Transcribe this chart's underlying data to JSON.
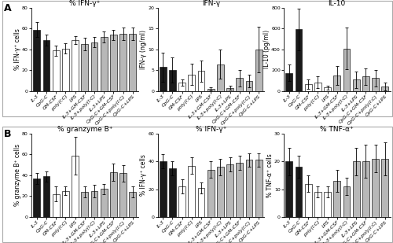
{
  "panel_A": {
    "plot1": {
      "title": "% IFN-γ⁺",
      "ylabel": "% IFN-γ⁺ cells",
      "ylim": [
        0,
        80
      ],
      "yticks": [
        0,
        20,
        40,
        60,
        80
      ],
      "categories": [
        "IL-3",
        "CpG-C",
        "GM-CSF",
        "poly(I:C)",
        "LPS",
        "IL-3+GM-CSF",
        "IL-3+poly(I:C)",
        "IL-3+LPS",
        "CpG-C+GM-CSF",
        "CpG-C+poly(I:C)",
        "CpG-C+LPS"
      ],
      "black_vals": [
        59,
        49,
        null,
        null,
        null,
        null,
        null,
        null,
        null,
        null,
        null
      ],
      "white_vals": [
        null,
        null,
        39,
        41,
        49,
        null,
        null,
        null,
        null,
        null,
        null
      ],
      "gray_vals": [
        null,
        null,
        null,
        null,
        null,
        45,
        47,
        52,
        54,
        55,
        55
      ],
      "black_err": [
        7,
        5,
        null,
        null,
        null,
        null,
        null,
        null,
        null,
        null,
        null
      ],
      "white_err": [
        null,
        null,
        5,
        5,
        4,
        null,
        null,
        null,
        null,
        null,
        null
      ],
      "gray_err": [
        null,
        null,
        null,
        null,
        null,
        6,
        5,
        5,
        5,
        6,
        6
      ]
    },
    "plot2": {
      "title": "IFN-γ",
      "ylabel": "IFN-γ (ng/ml)",
      "ylim": [
        0,
        20
      ],
      "yticks": [
        0,
        5,
        10,
        15,
        20
      ],
      "categories": [
        "IL-3",
        "CpG-C",
        "GM-CSF",
        "poly(I:C)",
        "LPS",
        "IL-3+GM-CSF",
        "IL-3+poly(I:C)",
        "IL-3+LPS",
        "CpG-C+GM-CSF",
        "CpG-C+poly(I:C)",
        "CpG-C+LPS"
      ],
      "black_vals": [
        5.8,
        5.1,
        null,
        null,
        null,
        null,
        null,
        null,
        null,
        null,
        null
      ],
      "white_vals": [
        null,
        null,
        2.0,
        4.0,
        4.8,
        null,
        null,
        null,
        null,
        null,
        null
      ],
      "gray_vals": [
        null,
        null,
        null,
        null,
        null,
        0.6,
        6.4,
        0.8,
        3.1,
        2.4,
        10.0
      ],
      "black_err": [
        3.5,
        3.0,
        null,
        null,
        null,
        null,
        null,
        null,
        null,
        null,
        null
      ],
      "white_err": [
        null,
        null,
        0.8,
        2.5,
        2.5,
        null,
        null,
        null,
        null,
        null,
        null
      ],
      "gray_err": [
        null,
        null,
        null,
        null,
        null,
        0.4,
        3.5,
        0.5,
        2.0,
        1.5,
        5.5
      ]
    },
    "plot3": {
      "title": "IL-10",
      "ylabel": "IL-10 (pg/ml)",
      "ylim": [
        0,
        800
      ],
      "yticks": [
        0,
        200,
        400,
        600,
        800
      ],
      "categories": [
        "IL-3",
        "CpG-C",
        "GM-CSF",
        "poly(I:C)",
        "LPS",
        "IL-3+GM-CSF",
        "IL-3+poly(I:C)",
        "IL-3+LPS",
        "CpG-C+GM-CSF",
        "CpG-C+poly(I:C)",
        "CpG-C+LPS"
      ],
      "black_vals": [
        175,
        595,
        null,
        null,
        null,
        null,
        null,
        null,
        null,
        null,
        null
      ],
      "white_vals": [
        null,
        null,
        65,
        85,
        35,
        null,
        null,
        null,
        null,
        null,
        null
      ],
      "gray_vals": [
        null,
        null,
        null,
        null,
        null,
        150,
        410,
        110,
        140,
        125,
        45
      ],
      "black_err": [
        80,
        200,
        null,
        null,
        null,
        null,
        null,
        null,
        null,
        null,
        null
      ],
      "white_err": [
        null,
        null,
        45,
        55,
        20,
        null,
        null,
        null,
        null,
        null,
        null
      ],
      "gray_err": [
        null,
        null,
        null,
        null,
        null,
        90,
        200,
        80,
        80,
        80,
        35
      ]
    }
  },
  "panel_B": {
    "plot1": {
      "title": "% granzyme B⁺",
      "ylabel": "% granzyme B⁺ cells",
      "ylim": [
        0,
        80
      ],
      "yticks": [
        0,
        20,
        40,
        60,
        80
      ],
      "categories": [
        "IL-3",
        "CpG-C",
        "GM-CSF",
        "poly(I:C)",
        "LPS",
        "IL-3+GM-CSF",
        "IL-3+poly(I:C)",
        "IL-3+LPS",
        "CpG-C+GM-CSF",
        "CpG-C+poly(I:C)",
        "CpG-C+LPS"
      ],
      "black_vals": [
        37,
        39,
        null,
        null,
        null,
        null,
        null,
        null,
        null,
        null,
        null
      ],
      "white_vals": [
        null,
        null,
        22,
        25,
        59,
        null,
        null,
        null,
        null,
        null,
        null
      ],
      "gray_vals": [
        null,
        null,
        null,
        null,
        null,
        24,
        25,
        27,
        43,
        42,
        24
      ],
      "black_err": [
        5,
        5,
        null,
        null,
        null,
        null,
        null,
        null,
        null,
        null,
        null
      ],
      "white_err": [
        null,
        null,
        7,
        4,
        18,
        null,
        null,
        null,
        null,
        null,
        null
      ],
      "gray_err": [
        null,
        null,
        null,
        null,
        null,
        5,
        6,
        5,
        8,
        8,
        5
      ]
    },
    "plot2": {
      "title": "% IFN-γ⁺",
      "ylabel": "% IFN-γ⁺ cells",
      "ylim": [
        0,
        60
      ],
      "yticks": [
        0,
        20,
        40,
        60
      ],
      "categories": [
        "IL-3",
        "CpG-C",
        "GM-CSF",
        "poly(I:C)",
        "LPS",
        "IL-3+GM-CSF",
        "IL-3+poly(I:C)",
        "IL-3+LPS",
        "CpG-C+GM-CSF",
        "CpG-C+poly(I:C)",
        "CpG-C+LPS"
      ],
      "black_vals": [
        40,
        35,
        null,
        null,
        null,
        null,
        null,
        null,
        null,
        null,
        null
      ],
      "white_vals": [
        null,
        null,
        22,
        37,
        21,
        null,
        null,
        null,
        null,
        null,
        null
      ],
      "gray_vals": [
        null,
        null,
        null,
        null,
        null,
        34,
        36,
        38,
        39,
        41,
        41
      ],
      "black_err": [
        5,
        5,
        null,
        null,
        null,
        null,
        null,
        null,
        null,
        null,
        null
      ],
      "white_err": [
        null,
        null,
        5,
        6,
        4,
        null,
        null,
        null,
        null,
        null,
        null
      ],
      "gray_err": [
        null,
        null,
        null,
        null,
        null,
        6,
        6,
        5,
        5,
        5,
        5
      ]
    },
    "plot3": {
      "title": "% TNF-α⁺",
      "ylabel": "% TNF-α⁺ cells",
      "ylim": [
        0,
        30
      ],
      "yticks": [
        0,
        10,
        20,
        30
      ],
      "categories": [
        "IL-3",
        "CpG-C",
        "GM-CSF",
        "poly(I:C)",
        "LPS",
        "IL-3+GM-CSF",
        "IL-3+poly(I:C)",
        "IL-3+LPS",
        "CpG-C+GM-CSF",
        "CpG-C+poly(I:C)",
        "CpG-C+LPS"
      ],
      "black_vals": [
        20,
        18,
        null,
        null,
        null,
        null,
        null,
        null,
        null,
        null,
        null
      ],
      "white_vals": [
        null,
        null,
        12,
        9,
        9,
        null,
        null,
        null,
        null,
        null,
        null
      ],
      "gray_vals": [
        null,
        null,
        null,
        null,
        null,
        13,
        11,
        20,
        20,
        21,
        21
      ],
      "black_err": [
        5,
        4,
        null,
        null,
        null,
        null,
        null,
        null,
        null,
        null,
        null
      ],
      "white_err": [
        null,
        null,
        3,
        2,
        2,
        null,
        null,
        null,
        null,
        null,
        null
      ],
      "gray_err": [
        null,
        null,
        null,
        null,
        null,
        4,
        3,
        5,
        6,
        5,
        6
      ]
    }
  },
  "colors": {
    "black": "#1a1a1a",
    "white": "#ffffff",
    "gray": "#b8b8b8",
    "edge": "#1a1a1a"
  },
  "tick_label_fontsize": 4.5,
  "axis_label_fontsize": 5.5,
  "title_fontsize": 6.5,
  "panel_label_fontsize": 9,
  "box_color": "#d8d8d8"
}
